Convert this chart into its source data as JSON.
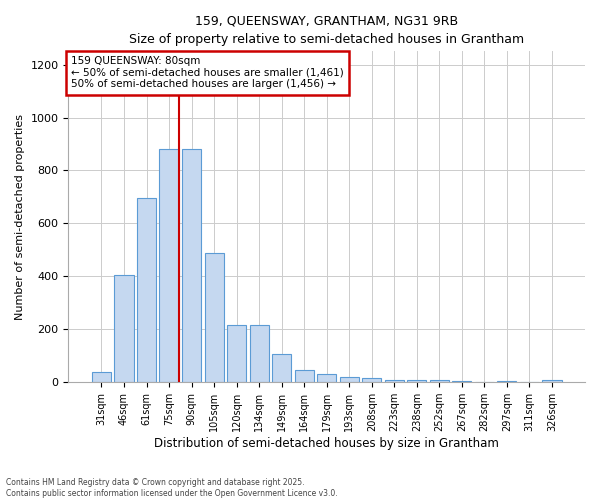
{
  "title1": "159, QUEENSWAY, GRANTHAM, NG31 9RB",
  "title2": "Size of property relative to semi-detached houses in Grantham",
  "xlabel": "Distribution of semi-detached houses by size in Grantham",
  "ylabel": "Number of semi-detached properties",
  "categories": [
    "31sqm",
    "46sqm",
    "61sqm",
    "75sqm",
    "90sqm",
    "105sqm",
    "120sqm",
    "134sqm",
    "149sqm",
    "164sqm",
    "179sqm",
    "193sqm",
    "208sqm",
    "223sqm",
    "238sqm",
    "252sqm",
    "267sqm",
    "282sqm",
    "297sqm",
    "311sqm",
    "326sqm"
  ],
  "values": [
    40,
    405,
    695,
    880,
    880,
    490,
    215,
    215,
    105,
    45,
    30,
    18,
    15,
    8,
    8,
    8,
    3,
    0,
    3,
    0,
    8
  ],
  "bar_color": "#c5d8f0",
  "bar_edge_color": "#5b9bd5",
  "grid_color": "#cccccc",
  "annotation_title": "159 QUEENSWAY: 80sqm",
  "annotation_line1": "← 50% of semi-detached houses are smaller (1,461)",
  "annotation_line2": "50% of semi-detached houses are larger (1,456) →",
  "annotation_box_color": "#ffffff",
  "annotation_box_edge": "#cc0000",
  "vline_color": "#cc0000",
  "ylim": [
    0,
    1250
  ],
  "yticks": [
    0,
    200,
    400,
    600,
    800,
    1000,
    1200
  ],
  "footnote1": "Contains HM Land Registry data © Crown copyright and database right 2025.",
  "footnote2": "Contains public sector information licensed under the Open Government Licence v3.0.",
  "bg_color": "#ffffff"
}
